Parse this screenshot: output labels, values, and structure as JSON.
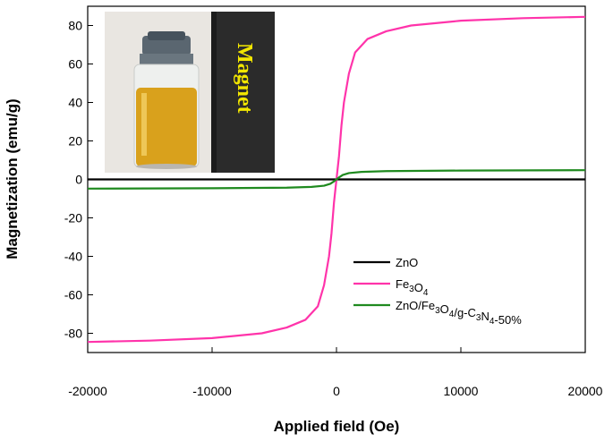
{
  "chart_data": {
    "type": "line",
    "xlabel": "Applied field (Oe)",
    "ylabel": "Magnetization (emu/g)",
    "xlim": [
      -20000,
      20000
    ],
    "ylim": [
      -90,
      90
    ],
    "xticks": [
      -20000,
      -10000,
      0,
      10000,
      20000
    ],
    "yticks": [
      -80,
      -60,
      -40,
      -20,
      0,
      20,
      40,
      60,
      80
    ],
    "grid": false,
    "legend_position": "lower-right",
    "series": [
      {
        "name": "ZnO",
        "color": "#000000",
        "x": [
          -20000,
          -10000,
          0,
          10000,
          20000
        ],
        "y": [
          0,
          0,
          0,
          0,
          0
        ]
      },
      {
        "name": "Fe3O4",
        "color": "#ff33aa",
        "x": [
          -20000,
          -15000,
          -10000,
          -6000,
          -4000,
          -2500,
          -1500,
          -1000,
          -600,
          -400,
          -200,
          -100,
          0,
          100,
          200,
          400,
          600,
          1000,
          1500,
          2500,
          4000,
          6000,
          10000,
          15000,
          20000
        ],
        "y": [
          -84.5,
          -83.8,
          -82.5,
          -80,
          -77,
          -73,
          -66,
          -55,
          -40,
          -28,
          -12,
          -6,
          0,
          6,
          12,
          28,
          40,
          55,
          66,
          73,
          77,
          80,
          82.5,
          83.8,
          84.5
        ]
      },
      {
        "name": "ZnO/Fe3O4/g-C3N4-50%",
        "color": "#1f8a1f",
        "x": [
          -20000,
          -10000,
          -4000,
          -2000,
          -1000,
          -500,
          -200,
          0,
          200,
          500,
          1000,
          2000,
          4000,
          10000,
          20000
        ],
        "y": [
          -4.8,
          -4.6,
          -4.3,
          -3.9,
          -3.3,
          -2.3,
          -1.0,
          0,
          1.0,
          2.3,
          3.3,
          3.9,
          4.3,
          4.6,
          4.8
        ]
      }
    ],
    "legend": [
      {
        "base": "ZnO",
        "parts": [
          {
            "t": "ZnO",
            "sub": false
          }
        ]
      },
      {
        "base": "Fe3O4",
        "parts": [
          {
            "t": "Fe",
            "sub": false
          },
          {
            "t": "3",
            "sub": true
          },
          {
            "t": "O",
            "sub": false
          },
          {
            "t": "4",
            "sub": true
          }
        ]
      },
      {
        "base": "ZnO/Fe3O4/g-C3N4-50%",
        "parts": [
          {
            "t": "ZnO/Fe",
            "sub": false
          },
          {
            "t": "3",
            "sub": true
          },
          {
            "t": "O",
            "sub": false
          },
          {
            "t": "4",
            "sub": true
          },
          {
            "t": "/g-C",
            "sub": false
          },
          {
            "t": "3",
            "sub": true
          },
          {
            "t": "N",
            "sub": false
          },
          {
            "t": "4",
            "sub": true
          },
          {
            "t": "-50%",
            "sub": false
          }
        ]
      }
    ]
  },
  "inset_photo": {
    "magnet_label": "Magnet",
    "liquid_color": "#d9a11c",
    "magnet_color": "#2b2b2b",
    "label_color": "#f2e600"
  }
}
